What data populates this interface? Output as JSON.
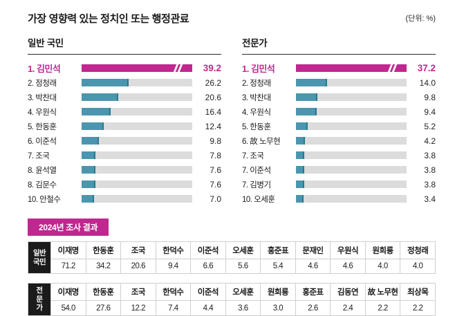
{
  "page": {
    "title": "가장 영향력 있는 정치인 또는 행정관료",
    "unit_label": "(단위: %)"
  },
  "colors": {
    "accent": "#c0278f",
    "bar": "#4b96ae",
    "bar_cap": "#2b7790",
    "track": "#dcdcdc",
    "row_header_bg": "#1b1b1b"
  },
  "survey": {
    "title": "2024년 조사 결과"
  },
  "chart_data": [
    {
      "type": "bar",
      "orientation": "horizontal",
      "title": "일반 국민",
      "unit": "%",
      "scale_max": 62,
      "rank1_bar_truncated_with_break": true,
      "items": [
        {
          "rank": "1.",
          "name": "김민석",
          "value": 39.2,
          "highlight": true
        },
        {
          "rank": "2.",
          "name": "정청래",
          "value": 26.2
        },
        {
          "rank": "3.",
          "name": "박찬대",
          "value": 20.6
        },
        {
          "rank": "4.",
          "name": "우원식",
          "value": 16.4
        },
        {
          "rank": "5.",
          "name": "한동훈",
          "value": 12.4
        },
        {
          "rank": "6.",
          "name": "이준석",
          "value": 9.8
        },
        {
          "rank": "7.",
          "name": "조국",
          "value": 7.8
        },
        {
          "rank": "8.",
          "name": "윤석열",
          "value": 7.6
        },
        {
          "rank": "8.",
          "name": "김문수",
          "value": 7.6
        },
        {
          "rank": "10.",
          "name": "안철수",
          "value": 7.0
        }
      ]
    },
    {
      "type": "bar",
      "orientation": "horizontal",
      "title": "전문가",
      "unit": "%",
      "scale_max": 50,
      "rank1_bar_truncated_with_break": true,
      "items": [
        {
          "rank": "1.",
          "name": "김민석",
          "value": 37.2,
          "highlight": true
        },
        {
          "rank": "2.",
          "name": "정청래",
          "value": 14.0
        },
        {
          "rank": "3.",
          "name": "박찬대",
          "value": 9.8
        },
        {
          "rank": "4.",
          "name": "우원식",
          "value": 9.4
        },
        {
          "rank": "5.",
          "name": "한동훈",
          "value": 5.2
        },
        {
          "rank": "6.",
          "name": "故 노무현",
          "value": 4.2
        },
        {
          "rank": "7.",
          "name": "조국",
          "value": 3.8
        },
        {
          "rank": "7.",
          "name": "이준석",
          "value": 3.8
        },
        {
          "rank": "7.",
          "name": "김병기",
          "value": 3.8
        },
        {
          "rank": "10.",
          "name": "오세훈",
          "value": 3.4
        }
      ]
    },
    {
      "type": "table",
      "title": "2024년 조사 결과 - 일반 국민",
      "row_label": "일반 국민",
      "row_label_lines": [
        "일반",
        "국민"
      ],
      "columns": [
        "이재명",
        "한동훈",
        "조국",
        "한덕수",
        "이준석",
        "오세훈",
        "홍준표",
        "문재인",
        "우원식",
        "원희룡",
        "정청래"
      ],
      "values": [
        71.2,
        34.2,
        20.6,
        9.4,
        6.6,
        5.6,
        5.4,
        4.6,
        4.6,
        4.0,
        4.0
      ]
    },
    {
      "type": "table",
      "title": "2024년 조사 결과 - 전문가",
      "row_label": "전문가",
      "row_label_lines": [
        "전",
        "문",
        "가"
      ],
      "columns": [
        "이재명",
        "한동훈",
        "조국",
        "한덕수",
        "이준석",
        "오세훈",
        "원희룡",
        "홍준표",
        "김동연",
        "故 노무현",
        "최상목"
      ],
      "values": [
        54.0,
        27.6,
        12.2,
        7.4,
        4.4,
        3.6,
        3.0,
        2.6,
        2.4,
        2.2,
        2.2
      ]
    }
  ]
}
